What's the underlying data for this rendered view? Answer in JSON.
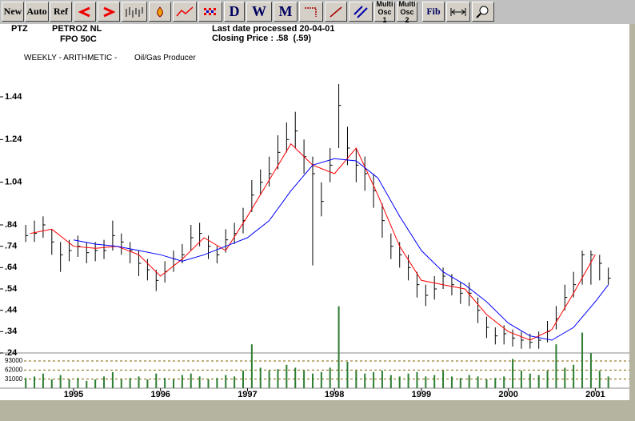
{
  "toolbar": {
    "buttons": [
      "New",
      "Auto",
      "Ref",
      "D",
      "W",
      "M",
      "Multi Osc 1",
      "Multi Osc 2",
      "Fib"
    ]
  },
  "header": {
    "code": "PTZ",
    "company": "PETROZ NL",
    "security": "FPO 50C",
    "last_date": "Last date processed 20-04-01",
    "closing": "Closing Price : .58  (.59)",
    "mode": "WEEKLY - ARITHMETIC -",
    "sector": "Oil/Gas Producer"
  },
  "chart_data": {
    "type": "stock",
    "xlim": [
      1994.43,
      2001.19
    ],
    "xticks": [
      1995,
      1996,
      1997,
      1998,
      1999,
      2000,
      2001
    ],
    "ylim": [
      0.24,
      1.59
    ],
    "yticks": [
      {
        "value": 0.24,
        "label": ".24"
      },
      {
        "value": 0.34,
        "label": ".34"
      },
      {
        "value": 0.44,
        "label": ".44"
      },
      {
        "value": 0.54,
        "label": ".54"
      },
      {
        "value": 0.64,
        "label": ".64"
      },
      {
        "value": 0.74,
        "label": ".74"
      },
      {
        "value": 0.84,
        "label": ".84"
      },
      {
        "value": 1.04,
        "label": "1.04"
      },
      {
        "value": 1.24,
        "label": "1.24"
      },
      {
        "value": 1.44,
        "label": "1.44"
      }
    ],
    "bar_color": "#000000",
    "x": [
      1994.45,
      1994.55,
      1994.65,
      1994.75,
      1994.85,
      1994.95,
      1995.05,
      1995.15,
      1995.25,
      1995.35,
      1995.45,
      1995.55,
      1995.65,
      1995.75,
      1995.85,
      1995.95,
      1996.05,
      1996.15,
      1996.25,
      1996.35,
      1996.45,
      1996.55,
      1996.65,
      1996.75,
      1996.85,
      1996.95,
      1997.05,
      1997.15,
      1997.25,
      1997.35,
      1997.45,
      1997.55,
      1997.65,
      1997.75,
      1997.85,
      1997.95,
      1998.05,
      1998.15,
      1998.25,
      1998.35,
      1998.45,
      1998.55,
      1998.65,
      1998.75,
      1998.85,
      1998.95,
      1999.05,
      1999.15,
      1999.25,
      1999.35,
      1999.45,
      1999.55,
      1999.65,
      1999.75,
      1999.85,
      1999.95,
      2000.05,
      2000.15,
      2000.25,
      2000.35,
      2000.45,
      2000.55,
      2000.65,
      2000.75,
      2000.85,
      2000.95,
      2001.05,
      2001.15
    ],
    "high": [
      0.84,
      0.86,
      0.88,
      0.82,
      0.76,
      0.77,
      0.79,
      0.76,
      0.76,
      0.77,
      0.86,
      0.8,
      0.76,
      0.72,
      0.68,
      0.63,
      0.67,
      0.72,
      0.75,
      0.84,
      0.85,
      0.79,
      0.74,
      0.82,
      0.85,
      0.92,
      1.05,
      1.1,
      1.16,
      1.26,
      1.32,
      1.37,
      1.24,
      1.16,
      1.04,
      1.2,
      1.5,
      1.3,
      1.2,
      1.16,
      1.08,
      0.94,
      0.8,
      0.76,
      0.7,
      0.62,
      0.56,
      0.6,
      0.64,
      0.61,
      0.57,
      0.57,
      0.5,
      0.41,
      0.36,
      0.37,
      0.35,
      0.34,
      0.33,
      0.34,
      0.39,
      0.46,
      0.56,
      0.62,
      0.72,
      0.72,
      0.7,
      0.64
    ],
    "low": [
      0.76,
      0.76,
      0.78,
      0.7,
      0.62,
      0.67,
      0.69,
      0.66,
      0.67,
      0.68,
      0.72,
      0.7,
      0.66,
      0.6,
      0.58,
      0.53,
      0.57,
      0.62,
      0.66,
      0.72,
      0.74,
      0.68,
      0.66,
      0.71,
      0.75,
      0.8,
      0.9,
      0.98,
      1.02,
      1.1,
      1.18,
      1.2,
      1.08,
      0.65,
      0.88,
      1.04,
      1.2,
      1.12,
      1.04,
      1.0,
      0.92,
      0.78,
      0.68,
      0.64,
      0.58,
      0.5,
      0.46,
      0.49,
      0.54,
      0.51,
      0.47,
      0.46,
      0.38,
      0.31,
      0.28,
      0.28,
      0.27,
      0.26,
      0.26,
      0.26,
      0.29,
      0.35,
      0.44,
      0.5,
      0.56,
      0.56,
      0.58,
      0.56
    ],
    "close": [
      0.79,
      0.8,
      0.84,
      0.76,
      0.7,
      0.72,
      0.74,
      0.71,
      0.72,
      0.72,
      0.79,
      0.76,
      0.72,
      0.66,
      0.63,
      0.58,
      0.62,
      0.68,
      0.7,
      0.78,
      0.8,
      0.74,
      0.7,
      0.77,
      0.8,
      0.86,
      0.98,
      1.04,
      1.08,
      1.18,
      1.24,
      1.28,
      1.16,
      1.08,
      0.95,
      1.12,
      1.4,
      1.2,
      1.12,
      1.08,
      1.0,
      0.86,
      0.74,
      0.7,
      0.64,
      0.56,
      0.51,
      0.54,
      0.6,
      0.56,
      0.52,
      0.52,
      0.44,
      0.36,
      0.32,
      0.33,
      0.31,
      0.3,
      0.29,
      0.3,
      0.34,
      0.4,
      0.5,
      0.56,
      0.7,
      0.7,
      0.66,
      0.59
    ],
    "volume": [
      35000,
      40000,
      50000,
      30000,
      45000,
      30000,
      35000,
      25000,
      30000,
      40000,
      55000,
      30000,
      35000,
      40000,
      30000,
      50000,
      35000,
      30000,
      45000,
      50000,
      40000,
      30000,
      35000,
      45000,
      40000,
      60000,
      150000,
      70000,
      60000,
      65000,
      80000,
      70000,
      60000,
      50000,
      55000,
      70000,
      280000,
      90000,
      60000,
      50000,
      55000,
      60000,
      45000,
      40000,
      50000,
      55000,
      40000,
      45000,
      60000,
      40000,
      35000,
      45000,
      40000,
      30000,
      35000,
      40000,
      100000,
      60000,
      50000,
      45000,
      60000,
      150000,
      70000,
      80000,
      190000,
      120000,
      60000,
      40000
    ],
    "volume_color": "#2e7d32",
    "volume_ylim": [
      0,
      93000
    ],
    "volume_yticks": [
      31000,
      62000,
      93000
    ],
    "series": [
      {
        "color": "#ff0000",
        "x": [
          1994.5,
          1994.75,
          1995.0,
          1995.25,
          1995.5,
          1995.75,
          1996.0,
          1996.25,
          1996.5,
          1996.75,
          1997.0,
          1997.25,
          1997.5,
          1997.75,
          1998.0,
          1998.25,
          1998.5,
          1998.75,
          1999.0,
          1999.25,
          1999.5,
          1999.75,
          2000.0,
          2000.25,
          2000.5,
          2000.75,
          2001.0
        ],
        "values": [
          0.8,
          0.82,
          0.74,
          0.73,
          0.74,
          0.7,
          0.6,
          0.68,
          0.78,
          0.72,
          0.88,
          1.05,
          1.22,
          1.12,
          1.08,
          1.2,
          0.98,
          0.74,
          0.58,
          0.56,
          0.54,
          0.42,
          0.34,
          0.3,
          0.35,
          0.52,
          0.7
        ]
      },
      {
        "color": "#0000ff",
        "x": [
          1995.0,
          1995.25,
          1995.5,
          1995.75,
          1996.0,
          1996.25,
          1996.5,
          1996.75,
          1997.0,
          1997.25,
          1997.5,
          1997.75,
          1998.0,
          1998.25,
          1998.5,
          1998.75,
          1999.0,
          1999.25,
          1999.5,
          1999.75,
          2000.0,
          2000.25,
          2000.5,
          2000.75,
          2001.0,
          2001.15
        ],
        "values": [
          0.77,
          0.75,
          0.74,
          0.72,
          0.7,
          0.67,
          0.7,
          0.74,
          0.78,
          0.86,
          1.0,
          1.12,
          1.15,
          1.14,
          1.06,
          0.88,
          0.72,
          0.62,
          0.56,
          0.48,
          0.38,
          0.32,
          0.3,
          0.36,
          0.48,
          0.56
        ]
      }
    ]
  }
}
